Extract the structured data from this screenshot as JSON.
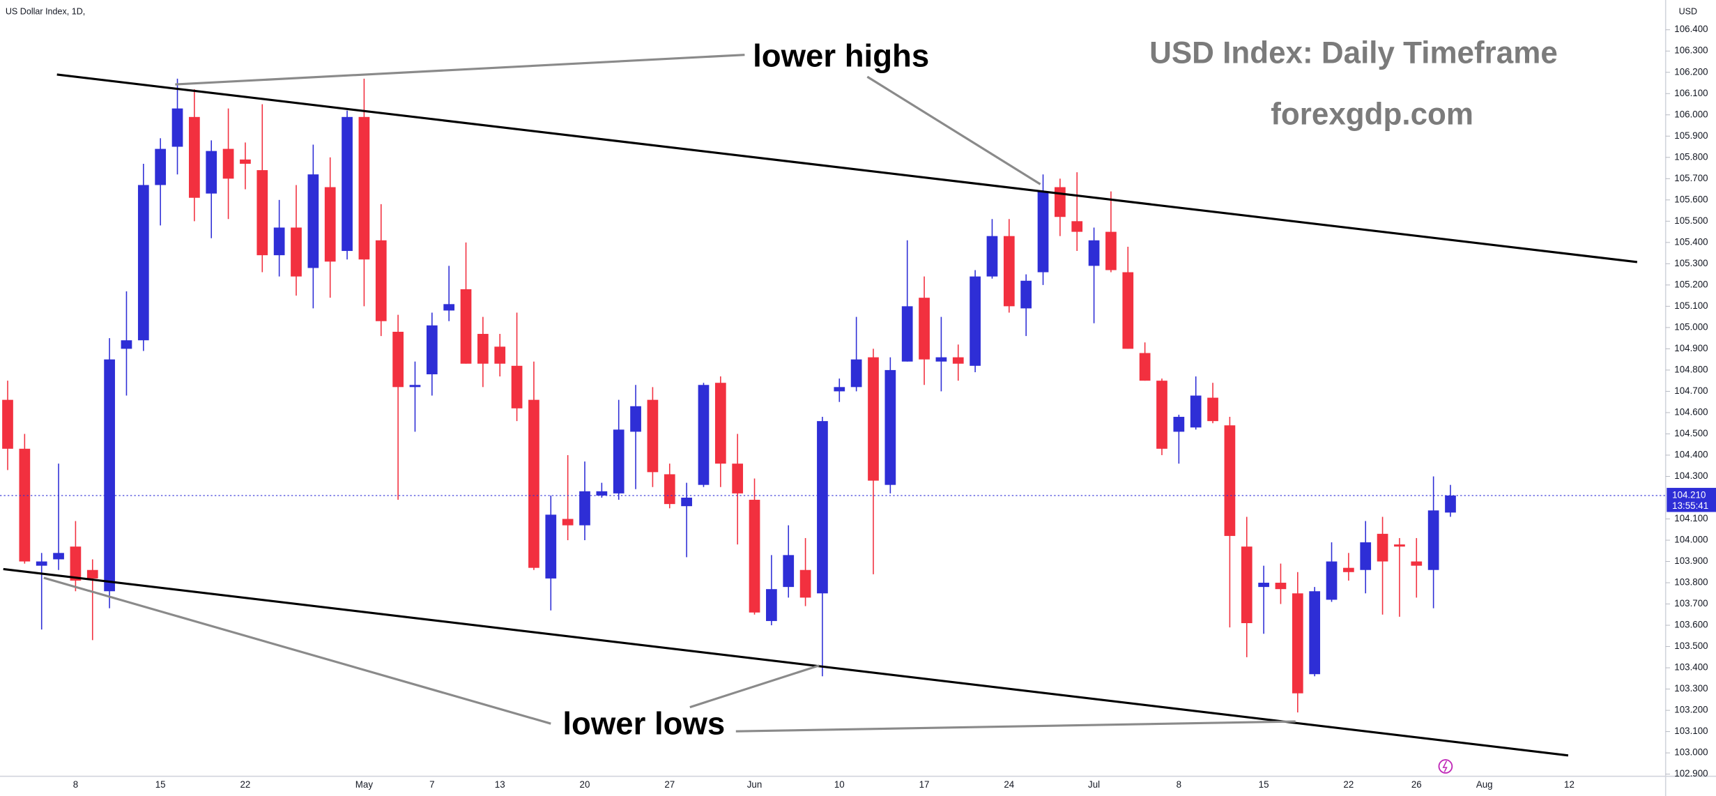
{
  "chart_data": {
    "type": "candlestick",
    "symbol_label": "US Dollar Index, 1D,",
    "currency": "USD",
    "title": "USD Index: Daily Timeframe",
    "subtitle": "forexgdp.com",
    "annotations": [
      "lower highs",
      "lower lows"
    ],
    "categories": [
      null,
      null,
      null,
      null,
      "8",
      null,
      null,
      null,
      null,
      "15",
      null,
      null,
      null,
      null,
      "22",
      null,
      null,
      null,
      null,
      null,
      null,
      "May",
      null,
      null,
      null,
      "7",
      null,
      null,
      null,
      "13",
      null,
      null,
      null,
      null,
      "20",
      null,
      null,
      null,
      null,
      "27",
      null,
      null,
      null,
      null,
      "Jun",
      null,
      null,
      null,
      null,
      "10",
      null,
      null,
      null,
      null,
      "17",
      null,
      null,
      null,
      null,
      "24",
      null,
      null,
      null,
      null,
      "Jul",
      null,
      null,
      null,
      null,
      "8",
      null,
      null,
      null,
      null,
      "15",
      null,
      null,
      null,
      null,
      "22",
      null,
      null,
      null,
      "26",
      null,
      null,
      null,
      "Aug",
      null,
      null,
      null,
      null,
      "12"
    ],
    "open": [
      104.66,
      104.43,
      103.88,
      103.91,
      103.97,
      103.86,
      103.76,
      104.9,
      104.94,
      105.67,
      105.85,
      105.99,
      105.63,
      105.84,
      105.79,
      105.74,
      105.34,
      105.47,
      105.28,
      105.66,
      105.36,
      105.99,
      105.41,
      104.98,
      104.72,
      104.78,
      105.08,
      105.18,
      104.97,
      104.91,
      104.82,
      104.66,
      103.82,
      104.1,
      104.07,
      104.21,
      104.22,
      104.51,
      104.66,
      104.31,
      104.16,
      104.26,
      104.74,
      104.36,
      104.19,
      103.62,
      103.78,
      103.86,
      103.75,
      104.7,
      104.72,
      104.86,
      104.26,
      104.84,
      105.14,
      104.84,
      104.86,
      104.82,
      105.24,
      105.43,
      105.09,
      105.26,
      105.66,
      105.5,
      105.29,
      105.45,
      105.26,
      104.88,
      104.75,
      104.51,
      104.53,
      104.67,
      104.54,
      103.97,
      103.78,
      103.8,
      103.75,
      103.37,
      103.72,
      103.87,
      103.86,
      104.03,
      103.98,
      103.9,
      103.86,
      104.13,
      null,
      null,
      null,
      null,
      null,
      null,
      null
    ],
    "high": [
      104.75,
      104.5,
      103.94,
      104.36,
      104.09,
      103.91,
      104.95,
      105.17,
      105.77,
      105.89,
      106.17,
      106.12,
      105.88,
      106.03,
      105.87,
      106.05,
      105.6,
      105.67,
      105.86,
      105.8,
      106.02,
      106.17,
      105.58,
      105.06,
      104.84,
      105.07,
      105.29,
      105.4,
      105.05,
      104.97,
      105.07,
      104.84,
      104.21,
      104.4,
      104.37,
      104.27,
      104.66,
      104.73,
      104.72,
      104.36,
      104.27,
      104.74,
      104.77,
      104.5,
      104.29,
      103.93,
      104.07,
      104.01,
      104.58,
      104.76,
      105.05,
      104.9,
      104.86,
      105.41,
      105.24,
      105.05,
      104.92,
      105.27,
      105.51,
      105.51,
      105.25,
      105.72,
      105.7,
      105.73,
      105.47,
      105.64,
      105.38,
      104.93,
      104.76,
      104.59,
      104.77,
      104.74,
      104.58,
      104.11,
      103.88,
      103.89,
      103.85,
      103.78,
      103.99,
      103.94,
      104.09,
      104.11,
      104.01,
      104.01,
      104.3,
      104.26,
      null,
      null,
      null,
      null,
      null,
      null,
      null
    ],
    "low": [
      104.33,
      103.89,
      103.58,
      103.86,
      103.76,
      103.53,
      103.68,
      104.68,
      104.89,
      105.48,
      105.72,
      105.5,
      105.42,
      105.51,
      105.65,
      105.26,
      105.24,
      105.15,
      105.09,
      105.14,
      105.32,
      105.1,
      104.96,
      104.19,
      104.51,
      104.68,
      105.03,
      104.83,
      104.72,
      104.77,
      104.56,
      103.86,
      103.67,
      104.0,
      104.0,
      104.2,
      104.19,
      104.24,
      104.25,
      104.15,
      103.92,
      104.25,
      104.25,
      103.98,
      103.65,
      103.6,
      103.73,
      103.69,
      103.36,
      104.65,
      104.7,
      103.84,
      104.22,
      104.84,
      104.73,
      104.7,
      104.75,
      104.79,
      105.23,
      105.07,
      104.96,
      105.2,
      105.43,
      105.36,
      105.02,
      105.26,
      104.9,
      104.75,
      104.4,
      104.36,
      104.52,
      104.55,
      103.59,
      103.45,
      103.56,
      103.7,
      103.19,
      103.36,
      103.71,
      103.81,
      103.75,
      103.65,
      103.64,
      103.73,
      103.68,
      104.11,
      null,
      null,
      null,
      null,
      null,
      null,
      null
    ],
    "close": [
      104.43,
      103.9,
      103.9,
      103.94,
      103.81,
      103.82,
      104.85,
      104.94,
      105.67,
      105.84,
      106.03,
      105.61,
      105.83,
      105.7,
      105.77,
      105.34,
      105.47,
      105.24,
      105.72,
      105.31,
      105.99,
      105.32,
      105.03,
      104.72,
      104.73,
      105.01,
      105.11,
      104.83,
      104.83,
      104.83,
      104.62,
      103.87,
      104.12,
      104.07,
      104.23,
      104.23,
      104.52,
      104.63,
      104.32,
      104.17,
      104.2,
      104.73,
      104.36,
      104.22,
      103.66,
      103.77,
      103.93,
      103.73,
      104.56,
      104.72,
      104.85,
      104.28,
      104.8,
      105.1,
      104.85,
      104.86,
      104.83,
      105.24,
      105.43,
      105.1,
      105.22,
      105.64,
      105.52,
      105.45,
      105.41,
      105.27,
      104.9,
      104.75,
      104.43,
      104.58,
      104.68,
      104.56,
      104.02,
      103.61,
      103.8,
      103.77,
      103.28,
      103.76,
      103.9,
      103.85,
      103.99,
      103.9,
      103.97,
      103.88,
      104.14,
      104.21,
      null,
      null,
      null,
      null,
      null,
      null,
      null
    ],
    "up_color": "#2e2ed6",
    "down_color": "#f2303f",
    "ylim": [
      102.89,
      106.54
    ],
    "yticks": [
      {
        "value": 102.9,
        "label": "102.900"
      },
      {
        "value": 103.0,
        "label": "103.000"
      },
      {
        "value": 103.1,
        "label": "103.100"
      },
      {
        "value": 103.2,
        "label": "103.200"
      },
      {
        "value": 103.3,
        "label": "103.300"
      },
      {
        "value": 103.4,
        "label": "103.400"
      },
      {
        "value": 103.5,
        "label": "103.500"
      },
      {
        "value": 103.6,
        "label": "103.600"
      },
      {
        "value": 103.7,
        "label": "103.700"
      },
      {
        "value": 103.8,
        "label": "103.800"
      },
      {
        "value": 103.9,
        "label": "103.900"
      },
      {
        "value": 104.0,
        "label": "104.000"
      },
      {
        "value": 104.1,
        "label": "104.100"
      },
      {
        "value": 104.3,
        "label": "104.300"
      },
      {
        "value": 104.4,
        "label": "104.400"
      },
      {
        "value": 104.5,
        "label": "104.500"
      },
      {
        "value": 104.6,
        "label": "104.600"
      },
      {
        "value": 104.7,
        "label": "104.700"
      },
      {
        "value": 104.8,
        "label": "104.800"
      },
      {
        "value": 104.9,
        "label": "104.900"
      },
      {
        "value": 105.0,
        "label": "105.000"
      },
      {
        "value": 105.1,
        "label": "105.100"
      },
      {
        "value": 105.2,
        "label": "105.200"
      },
      {
        "value": 105.3,
        "label": "105.300"
      },
      {
        "value": 105.4,
        "label": "105.400"
      },
      {
        "value": 105.5,
        "label": "105.500"
      },
      {
        "value": 105.6,
        "label": "105.600"
      },
      {
        "value": 105.7,
        "label": "105.700"
      },
      {
        "value": 105.8,
        "label": "105.800"
      },
      {
        "value": 105.9,
        "label": "105.900"
      },
      {
        "value": 106.0,
        "label": "106.000"
      },
      {
        "value": 106.1,
        "label": "106.100"
      },
      {
        "value": 106.2,
        "label": "106.200"
      },
      {
        "value": 106.3,
        "label": "106.300"
      },
      {
        "value": 106.4,
        "label": "106.400"
      }
    ],
    "last_price": {
      "value": 104.21,
      "label": "104.210"
    },
    "countdown": "13:55:41"
  }
}
